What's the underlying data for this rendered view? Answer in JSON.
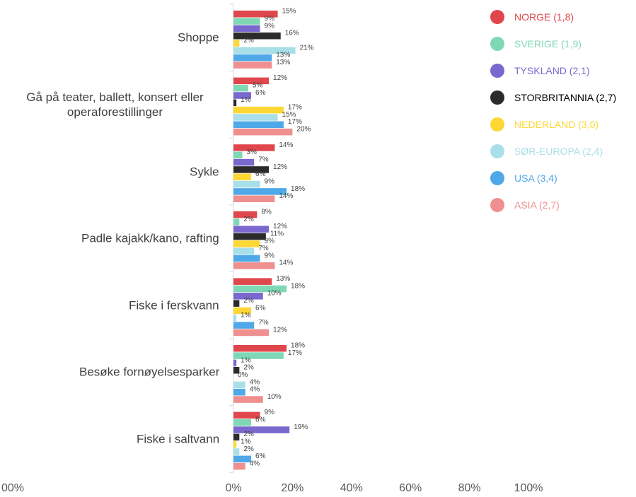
{
  "chart_data": {
    "type": "bar",
    "orientation": "horizontal",
    "categories": [
      "Shoppe",
      "Gå på teater, ballett, konsert eller operaforestillinger",
      "Sykle",
      "Padle kajakk/kano, rafting",
      "Fiske i ferskvann",
      "Besøke fornøyelsesparker",
      "Fiske i saltvann"
    ],
    "series": [
      {
        "name": "NORGE (1,8)",
        "color": "#e0474c",
        "values": [
          15,
          12,
          14,
          8,
          13,
          18,
          9
        ],
        "value_labels": [
          "15%",
          "12%",
          "14%",
          "8%",
          "13%",
          "18%",
          "9%"
        ]
      },
      {
        "name": "SVERIGE (1,9)",
        "color": "#7fd8b5",
        "values": [
          9,
          5,
          3,
          2,
          18,
          17,
          6
        ],
        "value_labels": [
          "9%",
          "5%",
          "3%",
          "2%",
          "18%",
          "17%",
          "6%"
        ]
      },
      {
        "name": "TYSKLAND (2,1)",
        "color": "#7b68cf",
        "values": [
          9,
          6,
          7,
          12,
          10,
          1,
          19
        ],
        "value_labels": [
          "9%",
          "6%",
          "7%",
          "12%",
          "10%",
          "1%",
          "19%"
        ]
      },
      {
        "name": "STORBRITANNIA (2,7)",
        "color": "#2b2b2b",
        "values": [
          16,
          1,
          12,
          11,
          2,
          2,
          2
        ],
        "value_labels": [
          "16%",
          "1%",
          "12%",
          "11%",
          "2%",
          "2%",
          "2%"
        ]
      },
      {
        "name": "NEDERLAND (3,0)",
        "color": "#fdd835",
        "values": [
          2,
          17,
          6,
          9,
          6,
          0,
          1
        ],
        "value_labels": [
          "2%",
          "17%",
          "6%",
          "9%",
          "6%",
          "0%",
          "1%"
        ]
      },
      {
        "name": "SØR-EUROPA (2,4)",
        "color": "#a8dfe8",
        "values": [
          21,
          15,
          9,
          7,
          1,
          4,
          2
        ],
        "value_labels": [
          "21%",
          "15%",
          "9%",
          "7%",
          "1%",
          "4%",
          "2%"
        ]
      },
      {
        "name": "USA (3,4)",
        "color": "#4fa8e8",
        "values": [
          13,
          17,
          18,
          9,
          7,
          4,
          6
        ],
        "value_labels": [
          "13%",
          "17%",
          "18%",
          "9%",
          "7%",
          "4%",
          "6%"
        ]
      },
      {
        "name": "ASIA (2,7)",
        "color": "#ef8f8f",
        "values": [
          13,
          20,
          14,
          14,
          12,
          10,
          4
        ],
        "value_labels": [
          "13%",
          "20%",
          "14%",
          "14%",
          "12%",
          "10%",
          "4%"
        ]
      }
    ],
    "xlim": [
      0,
      100
    ],
    "xticks": [
      {
        "value": 0,
        "label": "0%"
      },
      {
        "value": 20,
        "label": "20%"
      },
      {
        "value": 40,
        "label": "40%"
      },
      {
        "value": 60,
        "label": "60%"
      },
      {
        "value": 80,
        "label": "80%"
      },
      {
        "value": 100,
        "label": "100%"
      }
    ],
    "cut_off_label": "00%",
    "legend": "top-right"
  }
}
